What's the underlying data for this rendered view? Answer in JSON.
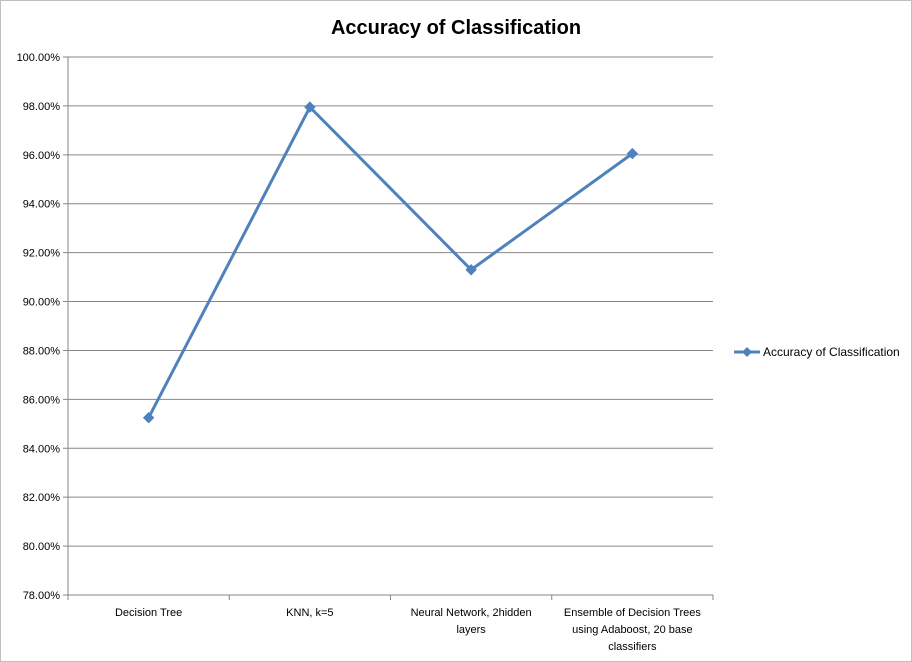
{
  "chart_data": {
    "type": "line",
    "title": "Accuracy of Classification",
    "xlabel": "",
    "ylabel": "",
    "categories": [
      [
        "Decision Tree"
      ],
      [
        "KNN, k=5"
      ],
      [
        "Neural Network, 2hidden",
        "layers"
      ],
      [
        "Ensemble of Decision Trees",
        "using Adaboost, 20 base",
        "classifiers"
      ]
    ],
    "series": [
      {
        "name": "Accuracy of Classification",
        "values": [
          0.8525,
          0.9795,
          0.913,
          0.9605
        ],
        "color": "#4f81bd",
        "marker": "diamond"
      }
    ],
    "ylim": [
      0.78,
      1.0
    ],
    "ytick_step": 0.02,
    "y_tick_format": "percent-2dp",
    "grid": "horizontal",
    "legend_position": "right"
  }
}
